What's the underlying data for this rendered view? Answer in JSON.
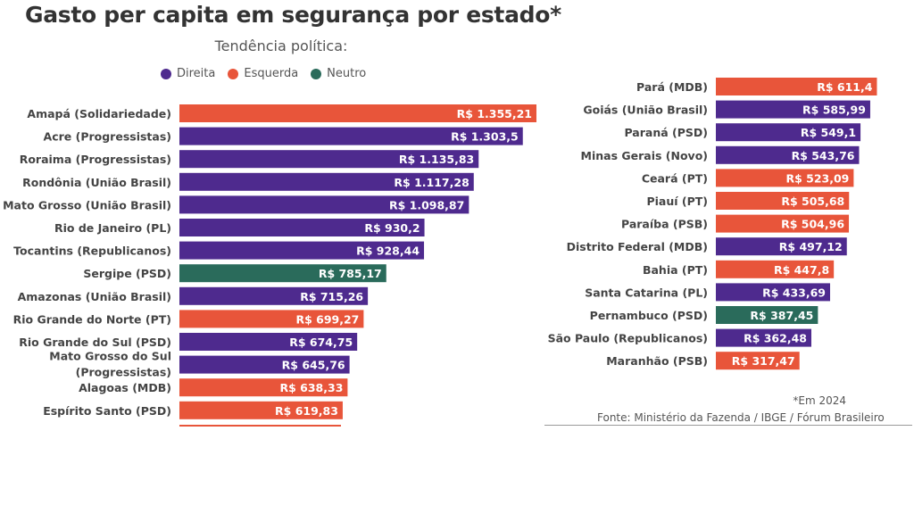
{
  "chart_data": {
    "type": "bar",
    "orientation": "horizontal",
    "title": "Gasto per capita em segurança por estado*",
    "subtitle": "Tendência política:",
    "xlabel": "",
    "ylabel": "",
    "value_prefix": "R$ ",
    "xlim": [
      0,
      1355.21
    ],
    "grid": false,
    "legend": {
      "placement": "top",
      "entries": [
        {
          "key": "direita",
          "label": "Direita",
          "color": "#4E2A8E"
        },
        {
          "key": "esquerda",
          "label": "Esquerda",
          "color": "#E8553A"
        },
        {
          "key": "neutro",
          "label": "Neutro",
          "color": "#2A6B5B"
        }
      ]
    },
    "panels": [
      {
        "name": "left",
        "bars": [
          {
            "label": [
              "Amapá (Solidariedade)"
            ],
            "value": 1355.21,
            "display": "R$ 1.355,21",
            "group": "esquerda"
          },
          {
            "label": [
              "Acre (Progressistas)"
            ],
            "value": 1303.5,
            "display": "R$ 1.303,5",
            "group": "direita"
          },
          {
            "label": [
              "Roraima (Progressistas)"
            ],
            "value": 1135.83,
            "display": "R$ 1.135,83",
            "group": "direita"
          },
          {
            "label": [
              "Rondônia (União Brasil)"
            ],
            "value": 1117.28,
            "display": "R$ 1.117,28",
            "group": "direita"
          },
          {
            "label": [
              "Mato Grosso (União Brasil)"
            ],
            "value": 1098.87,
            "display": "R$ 1.098,87",
            "group": "direita"
          },
          {
            "label": [
              "Rio de Janeiro (PL)"
            ],
            "value": 930.2,
            "display": "R$ 930,2",
            "group": "direita"
          },
          {
            "label": [
              "Tocantins (Republicanos)"
            ],
            "value": 928.44,
            "display": "R$ 928,44",
            "group": "direita"
          },
          {
            "label": [
              "Sergipe (PSD)"
            ],
            "value": 785.17,
            "display": "R$ 785,17",
            "group": "neutro"
          },
          {
            "label": [
              "Amazonas (União Brasil)"
            ],
            "value": 715.26,
            "display": "R$ 715,26",
            "group": "direita"
          },
          {
            "label": [
              "Rio Grande do Norte (PT)"
            ],
            "value": 699.27,
            "display": "R$ 699,27",
            "group": "esquerda"
          },
          {
            "label": [
              "Rio Grande do Sul (PSD)"
            ],
            "value": 674.75,
            "display": "R$ 674,75",
            "group": "direita"
          },
          {
            "label": [
              "Mato Grosso do Sul",
              "(Progressistas)"
            ],
            "value": 645.76,
            "display": "R$ 645,76",
            "group": "direita"
          },
          {
            "label": [
              "Alagoas (MDB)"
            ],
            "value": 638.33,
            "display": "R$ 638,33",
            "group": "esquerda"
          },
          {
            "label": [
              "Espírito Santo (PSD)"
            ],
            "value": 619.83,
            "display": "R$ 619,83",
            "group": "esquerda"
          }
        ]
      },
      {
        "name": "right",
        "bars": [
          {
            "label": [
              "Pará (MDB)"
            ],
            "value": 611.4,
            "display": "R$ 611,4",
            "group": "esquerda"
          },
          {
            "label": [
              "Goiás (União Brasil)"
            ],
            "value": 585.99,
            "display": "R$ 585,99",
            "group": "direita"
          },
          {
            "label": [
              "Paraná (PSD)"
            ],
            "value": 549.1,
            "display": "R$ 549,1",
            "group": "direita"
          },
          {
            "label": [
              "Minas Gerais (Novo)"
            ],
            "value": 543.76,
            "display": "R$ 543,76",
            "group": "direita"
          },
          {
            "label": [
              "Ceará (PT)"
            ],
            "value": 523.09,
            "display": "R$ 523,09",
            "group": "esquerda"
          },
          {
            "label": [
              "Piauí (PT)"
            ],
            "value": 505.68,
            "display": "R$ 505,68",
            "group": "esquerda"
          },
          {
            "label": [
              "Paraíba (PSB)"
            ],
            "value": 504.96,
            "display": "R$ 504,96",
            "group": "esquerda"
          },
          {
            "label": [
              "Distrito Federal (MDB)"
            ],
            "value": 497.12,
            "display": "R$ 497,12",
            "group": "direita"
          },
          {
            "label": [
              "Bahia (PT)"
            ],
            "value": 447.8,
            "display": "R$ 447,8",
            "group": "esquerda"
          },
          {
            "label": [
              "Santa Catarina (PL)"
            ],
            "value": 433.69,
            "display": "R$ 433,69",
            "group": "direita"
          },
          {
            "label": [
              "Pernambuco (PSD)"
            ],
            "value": 387.45,
            "display": "R$ 387,45",
            "group": "neutro"
          },
          {
            "label": [
              "São Paulo (Republicanos)"
            ],
            "value": 362.48,
            "display": "R$ 362,48",
            "group": "direita"
          },
          {
            "label": [
              "Maranhão (PSB)"
            ],
            "value": 317.47,
            "display": "R$ 317,47",
            "group": "esquerda"
          }
        ]
      }
    ],
    "annotations": {
      "note": "*Em 2024",
      "source": "Fonte: Ministério da Fazenda / IBGE / Fórum Brasileiro"
    }
  }
}
